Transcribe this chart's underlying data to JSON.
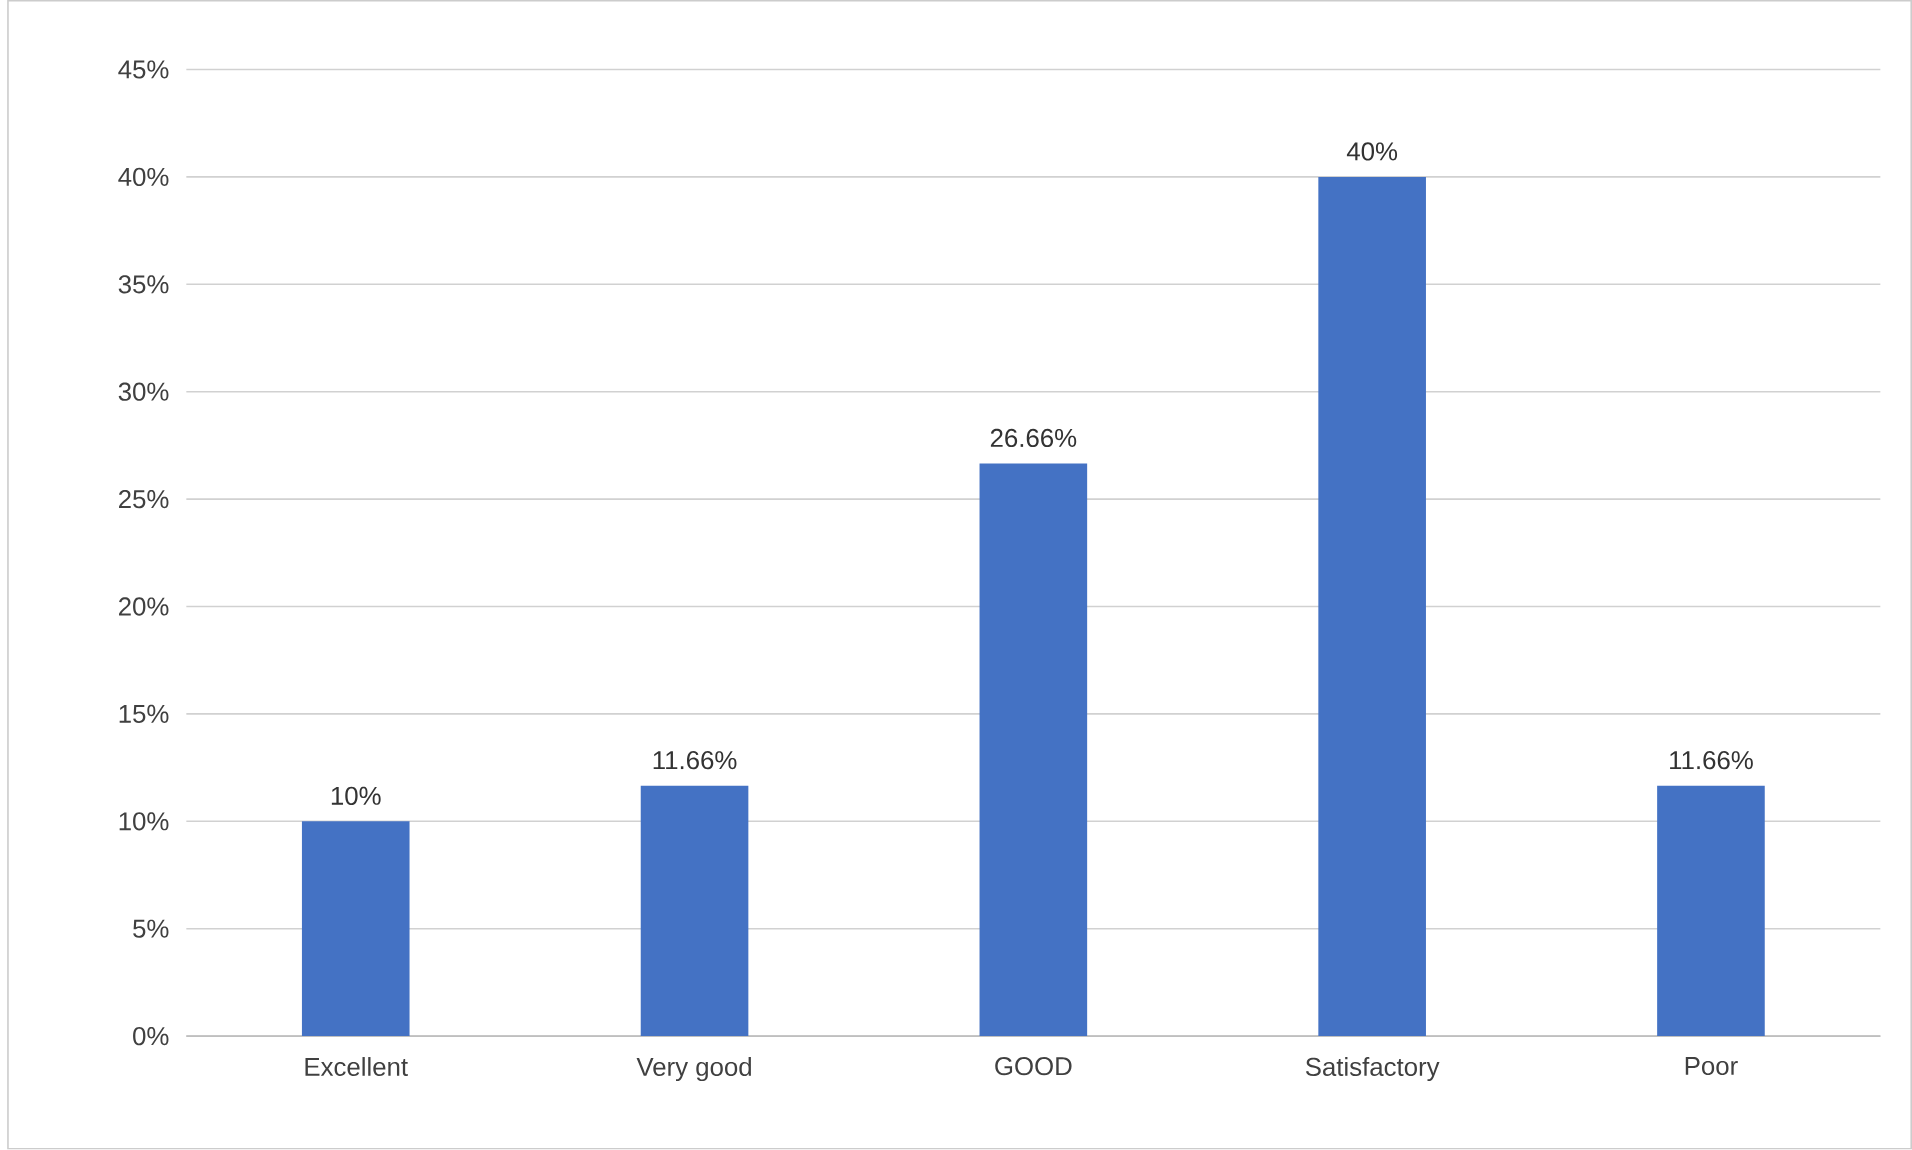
{
  "chart_data": {
    "type": "bar",
    "categories": [
      "Excellent",
      "Very good",
      "GOOD",
      "Satisfactory",
      "Poor"
    ],
    "values": [
      10,
      11.66,
      26.66,
      40,
      11.66
    ],
    "value_labels": [
      "10%",
      "11.66%",
      "26.66%",
      "40%",
      "11.66%"
    ],
    "color": "#4472c4",
    "ylim": [
      0,
      45
    ],
    "yticks": [
      {
        "value": 0,
        "label": "0%"
      },
      {
        "value": 5,
        "label": "5%"
      },
      {
        "value": 10,
        "label": "10%"
      },
      {
        "value": 15,
        "label": "15%"
      },
      {
        "value": 20,
        "label": "20%"
      },
      {
        "value": 25,
        "label": "25%"
      },
      {
        "value": 30,
        "label": "30%"
      },
      {
        "value": 35,
        "label": "35%"
      },
      {
        "value": 40,
        "label": "40%"
      },
      {
        "value": 45,
        "label": "45%"
      }
    ],
    "grid": "y"
  }
}
